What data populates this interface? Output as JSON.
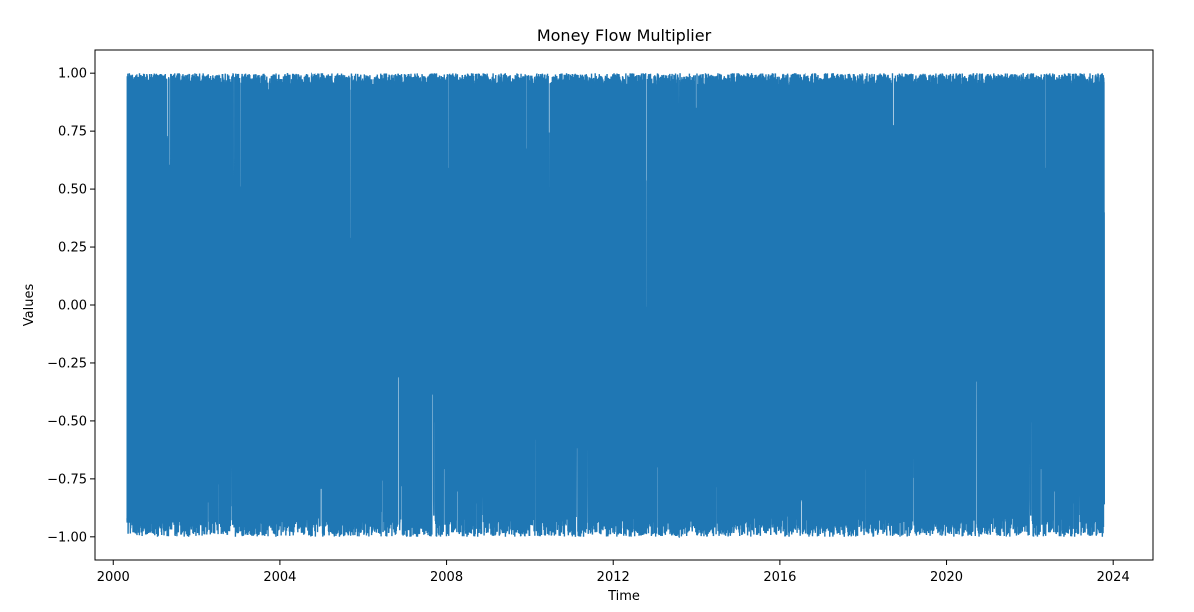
{
  "chart_data": {
    "type": "line",
    "title": "Money Flow Multiplier",
    "xlabel": "Time",
    "ylabel": "Values",
    "x_range": [
      "2000-05-01",
      "2023-10-15"
    ],
    "xlim": [
      "1999-07-25",
      "2024-12-15"
    ],
    "ylim": [
      -1.1,
      1.1
    ],
    "x_ticks": [
      "2000",
      "2004",
      "2008",
      "2012",
      "2016",
      "2020",
      "2024"
    ],
    "y_ticks": [
      "1.00",
      "0.75",
      "0.50",
      "0.25",
      "0.00",
      "−0.25",
      "−0.50",
      "−0.75",
      "−1.00"
    ],
    "y_tick_values": [
      1.0,
      0.75,
      0.5,
      0.25,
      0.0,
      -0.25,
      -0.5,
      -0.75,
      -1.0
    ],
    "grid": false,
    "legend": "none",
    "series": [
      {
        "color": "#1f77b4",
        "value_min": -1.0,
        "value_max": 1.0,
        "last_value": -0.86
      }
    ]
  }
}
